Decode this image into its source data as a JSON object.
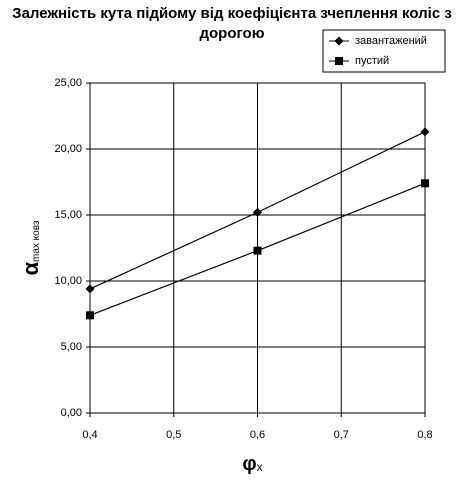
{
  "chart_data": {
    "type": "line",
    "title": "Залежність кута підйому від коефіцієнта зчеплення коліс з дорогою",
    "xlabel": "φ",
    "xlabel_sub": "x",
    "ylabel": "α",
    "ylabel_sub": "max ковз",
    "x": [
      0.4,
      0.6,
      0.8
    ],
    "series": [
      {
        "name": "завантажений",
        "color": "#000000",
        "marker": "diamond",
        "values": [
          9.4,
          15.2,
          21.3
        ]
      },
      {
        "name": "пустий",
        "color": "#000000",
        "marker": "square",
        "values": [
          7.4,
          12.3,
          17.4
        ]
      }
    ],
    "xlim": [
      0.4,
      0.8
    ],
    "xticks": [
      {
        "value": 0.4,
        "label": "0,4"
      },
      {
        "value": 0.5,
        "label": "0,5"
      },
      {
        "value": 0.6,
        "label": "0,6"
      },
      {
        "value": 0.7,
        "label": "0,7"
      },
      {
        "value": 0.8,
        "label": "0,8"
      }
    ],
    "ylim": [
      0,
      25
    ],
    "yticks": [
      {
        "value": 0,
        "label": "0,00"
      },
      {
        "value": 5,
        "label": "5,00"
      },
      {
        "value": 10,
        "label": "10,00"
      },
      {
        "value": 15,
        "label": "15,00"
      },
      {
        "value": 20,
        "label": "20,00"
      },
      {
        "value": 25,
        "label": "25,00"
      }
    ],
    "grid": true,
    "legend": "top-right"
  }
}
